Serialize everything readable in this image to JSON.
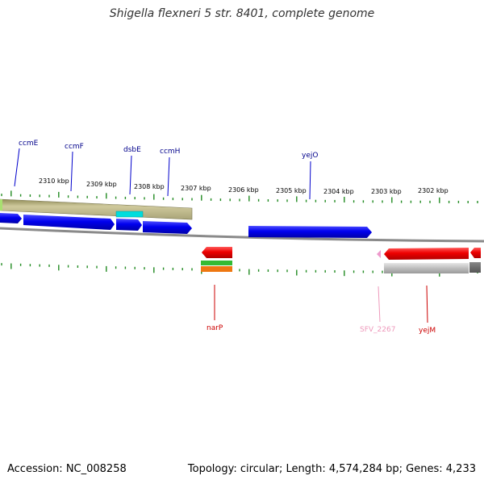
{
  "title": "Shigella flexneri 5 str. 8401, complete genome",
  "footer": {
    "accession": "Accession: NC_008258",
    "summary": "Topology: circular; Length: 4,574,284 bp; Genes: 4,233"
  },
  "scale": {
    "ticks": [
      {
        "label": "2310 kbp"
      },
      {
        "label": "2309 kbp"
      },
      {
        "label": "2308 kbp"
      },
      {
        "label": "2307 kbp"
      },
      {
        "label": "2306 kbp"
      },
      {
        "label": "2305 kbp"
      },
      {
        "label": "2304 kbp"
      },
      {
        "label": "2303 kbp"
      },
      {
        "label": "2302 kbp"
      }
    ]
  },
  "colors": {
    "forward_cds": "#0000ee",
    "reverse_cds": "#ee0000",
    "gene_block": "#bdb78a",
    "backbone": "#888888",
    "tick": "#228b22",
    "forward_label": "#00008b",
    "reverse_label": "#cc0000",
    "pseudo_label": "#ee99bb"
  },
  "genes": {
    "forward": [
      {
        "name": "ccmE"
      },
      {
        "name": "ccmF"
      },
      {
        "name": "dsbE"
      },
      {
        "name": "ccmH"
      },
      {
        "name": "yejO"
      }
    ],
    "reverse": [
      {
        "name": "narP"
      },
      {
        "name": "SFV_2267"
      },
      {
        "name": "yejM"
      }
    ]
  }
}
